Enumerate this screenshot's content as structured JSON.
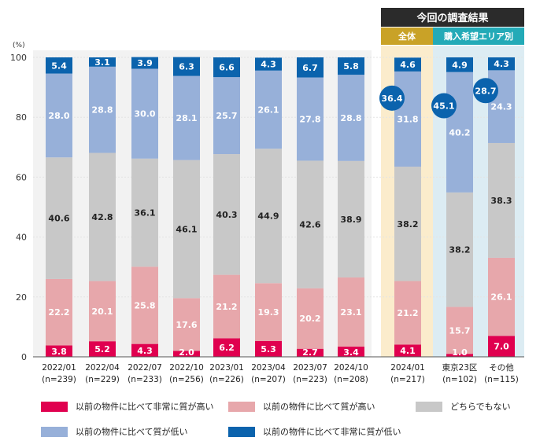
{
  "chart_data": {
    "type": "bar",
    "stacked": true,
    "ylabel": "(%)",
    "ylim": [
      0,
      100
    ],
    "yticks": [
      0,
      20,
      40,
      60,
      80,
      100
    ],
    "categories": [
      {
        "label": "2022/01",
        "n": "(n=239)"
      },
      {
        "label": "2022/04",
        "n": "(n=229)"
      },
      {
        "label": "2022/07",
        "n": "(n=233)"
      },
      {
        "label": "2022/10",
        "n": "(n=256)"
      },
      {
        "label": "2023/01",
        "n": "(n=226)"
      },
      {
        "label": "2023/04",
        "n": "(n=207)"
      },
      {
        "label": "2023/07",
        "n": "(n=223)"
      },
      {
        "label": "2024/10",
        "n": "(n=208)"
      },
      {
        "label": "2024/01",
        "n": "(n=217)"
      },
      {
        "label": "東京23区",
        "n": "(n=102)"
      },
      {
        "label": "その他",
        "n": "(n=115)"
      }
    ],
    "series": [
      {
        "name": "以前の物件に比べて非常に質が高い",
        "color": "#e0004f",
        "label_color": "#ffffff",
        "values": [
          3.8,
          5.2,
          4.3,
          2.0,
          6.2,
          5.3,
          2.7,
          3.4,
          4.1,
          1.0,
          7.0
        ]
      },
      {
        "name": "以前の物件に比べて質が高い",
        "color": "#e7a7ab",
        "label_color": "#ffffff",
        "values": [
          22.2,
          20.1,
          25.8,
          17.6,
          21.2,
          19.3,
          20.2,
          23.1,
          21.2,
          15.7,
          26.1
        ]
      },
      {
        "name": "どちらでもない",
        "color": "#c8c8c8",
        "label_color": "#222222",
        "values": [
          40.6,
          42.8,
          36.1,
          46.1,
          40.3,
          44.9,
          42.6,
          38.9,
          38.2,
          38.2,
          38.3
        ]
      },
      {
        "name": "以前の物件に比べて質が低い",
        "color": "#97b0d9",
        "label_color": "#ffffff",
        "values": [
          28.0,
          28.8,
          30.0,
          28.1,
          25.7,
          26.1,
          27.8,
          28.8,
          31.8,
          40.2,
          24.3
        ]
      },
      {
        "name": "以前の物件に比べて非常に質が低い",
        "color": "#0b63ad",
        "label_color": "#ffffff",
        "values": [
          5.4,
          3.1,
          3.9,
          6.3,
          6.6,
          4.3,
          6.7,
          5.8,
          4.6,
          4.9,
          4.3
        ]
      }
    ],
    "highlight_totals": [
      {
        "category_index": 8,
        "value": "36.4"
      },
      {
        "category_index": 9,
        "value": "45.1"
      },
      {
        "category_index": 10,
        "value": "28.7"
      }
    ],
    "header": {
      "title": "今回の調査結果",
      "group_all": "全体",
      "group_area": "購入希望エリア別"
    }
  },
  "colors": {
    "panel_background": "#f2f2f2",
    "all_background": "#fbeccc",
    "area_background": "#dcecf3",
    "header_dark": "#2b2b2b",
    "header_gold": "#c9a227",
    "header_teal": "#23aab7",
    "highlight_circle": "#0b63ad"
  }
}
